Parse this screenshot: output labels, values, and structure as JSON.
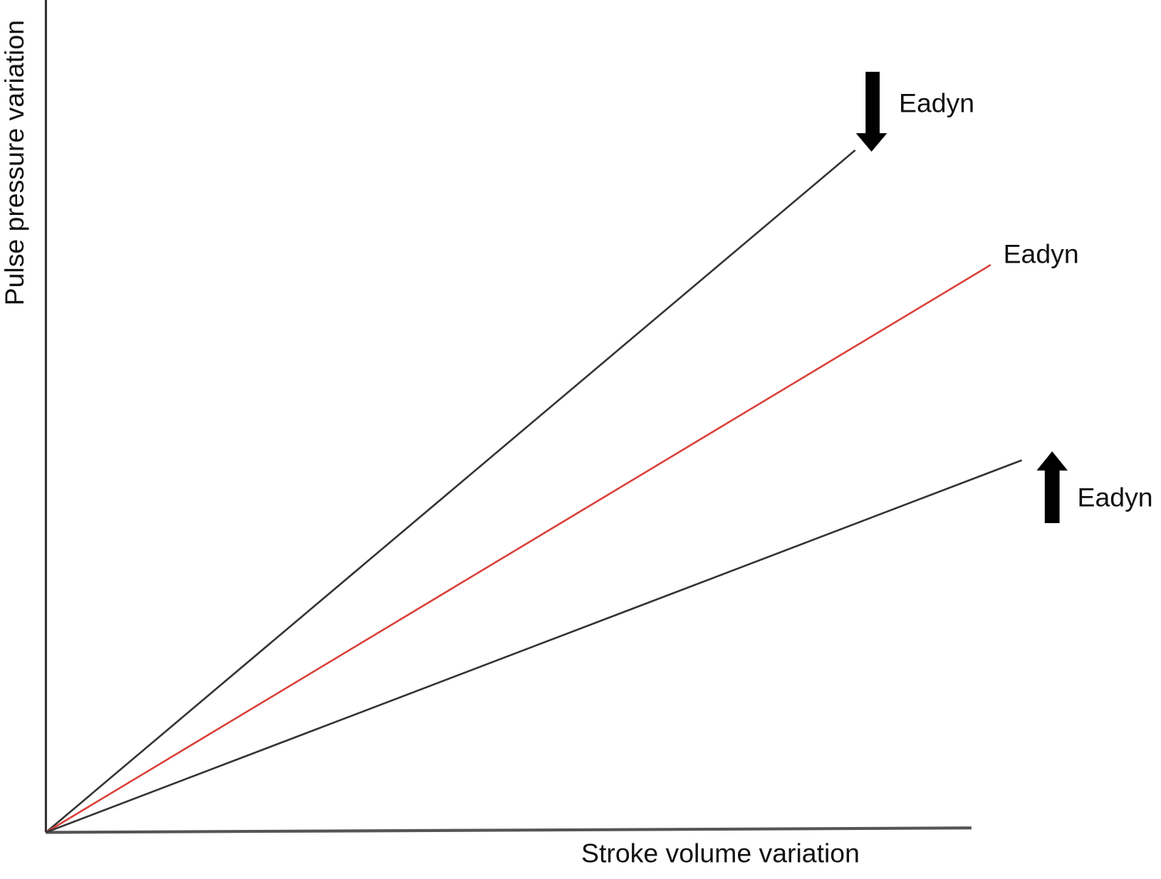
{
  "axes": {
    "y_label": "Pulse pressure variation",
    "x_label": "Stroke volume variation"
  },
  "lines": [
    {
      "label": "Eadyn"
    },
    {
      "label": "Eadyn"
    },
    {
      "label": "Eadyn"
    }
  ]
}
